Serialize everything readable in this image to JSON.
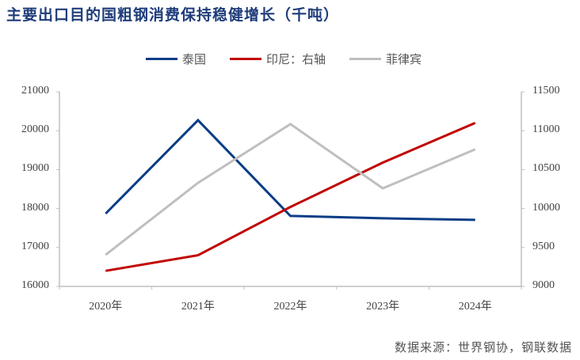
{
  "title": "主要出口目的国粗钢消费保持稳健增长（千吨）",
  "source": "数据来源：世界钢协，钢联数据",
  "legend": [
    {
      "label": "泰国",
      "color": "#0b3d86"
    },
    {
      "label": "印尼：右轴",
      "color": "#c00000"
    },
    {
      "label": "菲律宾",
      "color": "#bfbfbf"
    }
  ],
  "left_axis_ticks": [
    "21000",
    "20000",
    "19000",
    "18000",
    "17000",
    "16000"
  ],
  "right_axis_ticks": [
    "11500",
    "11000",
    "10500",
    "10000",
    "9500",
    "9000"
  ],
  "x_ticks": [
    "2020年",
    "2021年",
    "2022年",
    "2023年",
    "2024年"
  ],
  "chart_data": {
    "type": "line",
    "title": "主要出口目的国粗钢消费保持稳健增长（千吨）",
    "categories": [
      "2020年",
      "2021年",
      "2022年",
      "2023年",
      "2024年"
    ],
    "series": [
      {
        "name": "泰国",
        "axis": "left",
        "color": "#0b3d86",
        "values": [
          17870,
          20270,
          17810,
          17750,
          17710
        ]
      },
      {
        "name": "印尼：右轴",
        "axis": "right",
        "color": "#c00000",
        "values": [
          9200,
          9400,
          10020,
          10590,
          11100
        ]
      },
      {
        "name": "菲律宾",
        "axis": "left",
        "color": "#bfbfbf",
        "values": [
          16810,
          18660,
          20170,
          18520,
          19520
        ]
      }
    ],
    "ylim_left": [
      16000,
      21000
    ],
    "ylim_right": [
      9000,
      11500
    ],
    "xlabel": "",
    "ylabel": "",
    "grid": false,
    "legend_position": "top"
  }
}
